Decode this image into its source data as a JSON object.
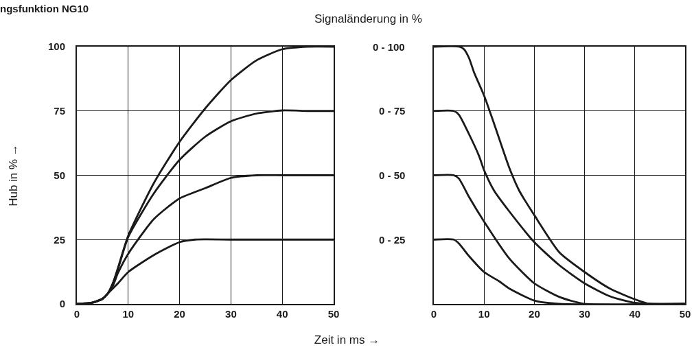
{
  "chart_data": [
    {
      "type": "line",
      "title": "ngsfunktion NG10",
      "xlabel": "Zeit in ms →",
      "ylabel": "Hub in % →",
      "xlim": [
        0,
        50
      ],
      "xticks": [
        0,
        10,
        20,
        30,
        40,
        50
      ],
      "ylim": [
        0,
        100
      ],
      "yticks": [
        0,
        25,
        50,
        75,
        100
      ],
      "grid": true,
      "marker": "none",
      "line_style": "solid",
      "series": [
        {
          "color": "#1a1a1a",
          "x": [
            0,
            3,
            5,
            6,
            7,
            8,
            10,
            15,
            20,
            25,
            30,
            35,
            40,
            45,
            50
          ],
          "values": [
            0,
            0.5,
            2,
            4,
            8,
            14,
            26.5,
            47,
            63,
            76,
            87,
            94.7,
            99,
            100,
            100
          ]
        },
        {
          "color": "#1a1a1a",
          "x": [
            0,
            3,
            5,
            6,
            7,
            8,
            10,
            15,
            20,
            25,
            30,
            35,
            40,
            45,
            50
          ],
          "values": [
            0,
            0.5,
            2,
            4,
            8,
            13.5,
            26,
            43,
            56,
            65,
            71,
            74,
            75.2,
            75,
            75
          ]
        },
        {
          "color": "#1a1a1a",
          "x": [
            0,
            3,
            5,
            6,
            7,
            8,
            10,
            15,
            20,
            25,
            30,
            35,
            40,
            45,
            50
          ],
          "values": [
            0,
            0.5,
            2,
            4,
            7,
            12,
            19.5,
            33,
            41,
            45,
            49,
            50,
            50,
            50,
            50
          ]
        },
        {
          "color": "#1a1a1a",
          "x": [
            0,
            3,
            5,
            6,
            7,
            8,
            10,
            15,
            20,
            23,
            30,
            40,
            50
          ],
          "values": [
            0,
            0.5,
            2,
            4,
            6,
            8,
            12.4,
            19,
            24,
            25,
            25,
            25,
            25
          ]
        }
      ]
    },
    {
      "type": "line",
      "ylabel": "Signaländerung in %",
      "xlim": [
        0,
        50
      ],
      "xticks": [
        0,
        10,
        20,
        30,
        40,
        50
      ],
      "ylim": [
        0,
        100
      ],
      "yticks": [
        0,
        25,
        50,
        75,
        100
      ],
      "tick_labels": "x",
      "grid": true,
      "marker": "none",
      "line_style": "solid",
      "series": [
        {
          "name": "0 - 100",
          "color": "#1a1a1a",
          "x": [
            0,
            5,
            6,
            7,
            8,
            10,
            12,
            15,
            17,
            20,
            25,
            30,
            35,
            40,
            43,
            50
          ],
          "values": [
            100,
            100,
            99,
            95.6,
            90,
            81,
            70,
            53,
            44,
            34.5,
            20,
            12.4,
            6,
            1.8,
            0,
            0
          ]
        },
        {
          "name": "0 - 75",
          "color": "#1a1a1a",
          "x": [
            0,
            4,
            5,
            7,
            9,
            10,
            12,
            15,
            20,
            25,
            30,
            35,
            40,
            50
          ],
          "values": [
            75,
            75,
            73.5,
            66,
            57.5,
            52,
            44,
            36,
            24,
            15,
            8,
            3,
            0.4,
            0
          ]
        },
        {
          "name": "0 - 50",
          "color": "#1a1a1a",
          "x": [
            0,
            4,
            5,
            7,
            10,
            15,
            20,
            25,
            30,
            50
          ],
          "values": [
            50,
            50,
            48.7,
            41.6,
            32,
            17.7,
            8,
            2.7,
            0,
            0
          ]
        },
        {
          "name": "0 - 25",
          "color": "#1a1a1a",
          "x": [
            0,
            4,
            5,
            7,
            10,
            13,
            15,
            20,
            25,
            50
          ],
          "values": [
            25,
            25,
            23.5,
            18.6,
            12.4,
            8.8,
            6,
            1.3,
            0,
            0
          ]
        }
      ]
    }
  ]
}
